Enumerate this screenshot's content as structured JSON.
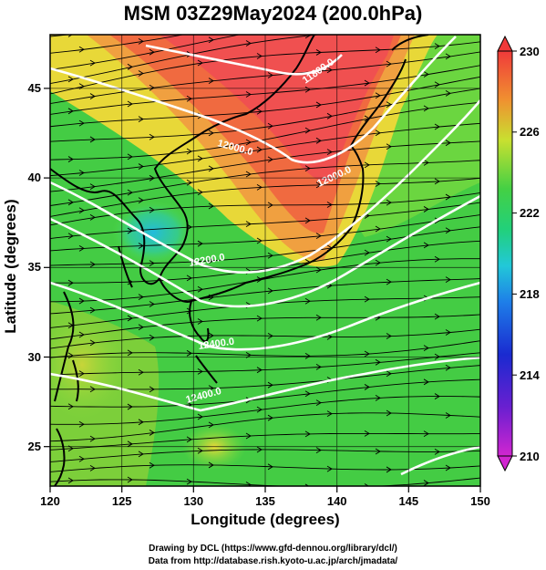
{
  "title": "MSM 03Z29May2024 (200.0hPa)",
  "axes": {
    "xlabel": "Longitude (degrees)",
    "ylabel": "Latitude  (degrees)",
    "xticks": [
      "120",
      "125",
      "130",
      "135",
      "140",
      "145",
      "150"
    ],
    "yticks": [
      "25",
      "30",
      "35",
      "40",
      "45"
    ],
    "xlim": [
      120,
      150
    ],
    "ylim": [
      22.4,
      47.6
    ]
  },
  "colorbar": {
    "ticks": [
      "230",
      "226",
      "222",
      "218",
      "214",
      "210"
    ],
    "range": [
      210,
      230
    ]
  },
  "contour_labels": [
    "11800.0",
    "12000.0",
    "12000.0",
    "12200.0",
    "12400.0",
    "12400.0"
  ],
  "credits": [
    "Drawing by DCL (https://www.gfd-dennou.org/library/dcl/)",
    "Data from http://database.rish.kyoto-u.ac.jp/arch/jmadata/"
  ],
  "colors": {
    "warm": "#f05050",
    "mid": "#55dd44",
    "cool": "#22bbdd",
    "contour": "#ffffff",
    "coast": "#000000"
  }
}
